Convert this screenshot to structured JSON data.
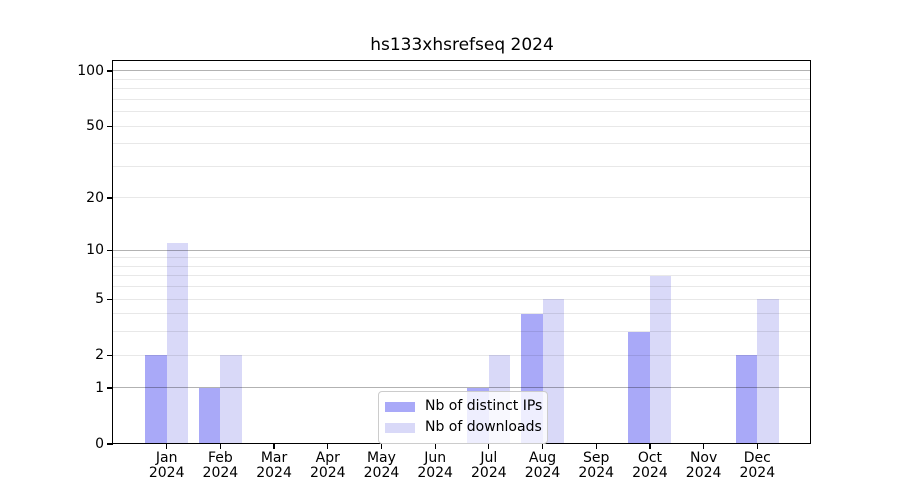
{
  "title": "hs133xhsrefseq 2024",
  "chart_data": {
    "type": "bar",
    "title": "hs133xhsrefseq 2024",
    "categories": [
      "Jan 2024",
      "Feb 2024",
      "Mar 2024",
      "Apr 2024",
      "May 2024",
      "Jun 2024",
      "Jul 2024",
      "Aug 2024",
      "Sep 2024",
      "Oct 2024",
      "Nov 2024",
      "Dec 2024"
    ],
    "x_tick_months": [
      "Jan",
      "Feb",
      "Mar",
      "Apr",
      "May",
      "Jun",
      "Jul",
      "Aug",
      "Sep",
      "Oct",
      "Nov",
      "Dec"
    ],
    "x_tick_year": "2024",
    "series": [
      {
        "name": "Nb of distinct IPs",
        "color": "#a9a9f8",
        "values": [
          2,
          1,
          0,
          0,
          0,
          0,
          1,
          4,
          0,
          3,
          0,
          2
        ]
      },
      {
        "name": "Nb of downloads",
        "color": "#d9d9f8",
        "values": [
          11,
          2,
          0,
          0,
          0,
          0,
          2,
          5,
          0,
          7,
          0,
          5
        ]
      }
    ],
    "xlabel": "",
    "ylabel": "",
    "yscale": "log1p",
    "ylim": [
      0,
      113
    ],
    "yticks": [
      0,
      1,
      2,
      5,
      10,
      20,
      50,
      100
    ],
    "major_gridlines": [
      1,
      10,
      100
    ],
    "minor_gridlines": [
      2,
      3,
      4,
      5,
      6,
      7,
      8,
      9,
      20,
      30,
      40,
      50,
      60,
      70,
      80,
      90
    ],
    "grid": true,
    "legend_position": "lower center"
  },
  "legend": {
    "items": [
      {
        "label": "Nb of distinct IPs"
      },
      {
        "label": "Nb of downloads"
      }
    ]
  }
}
